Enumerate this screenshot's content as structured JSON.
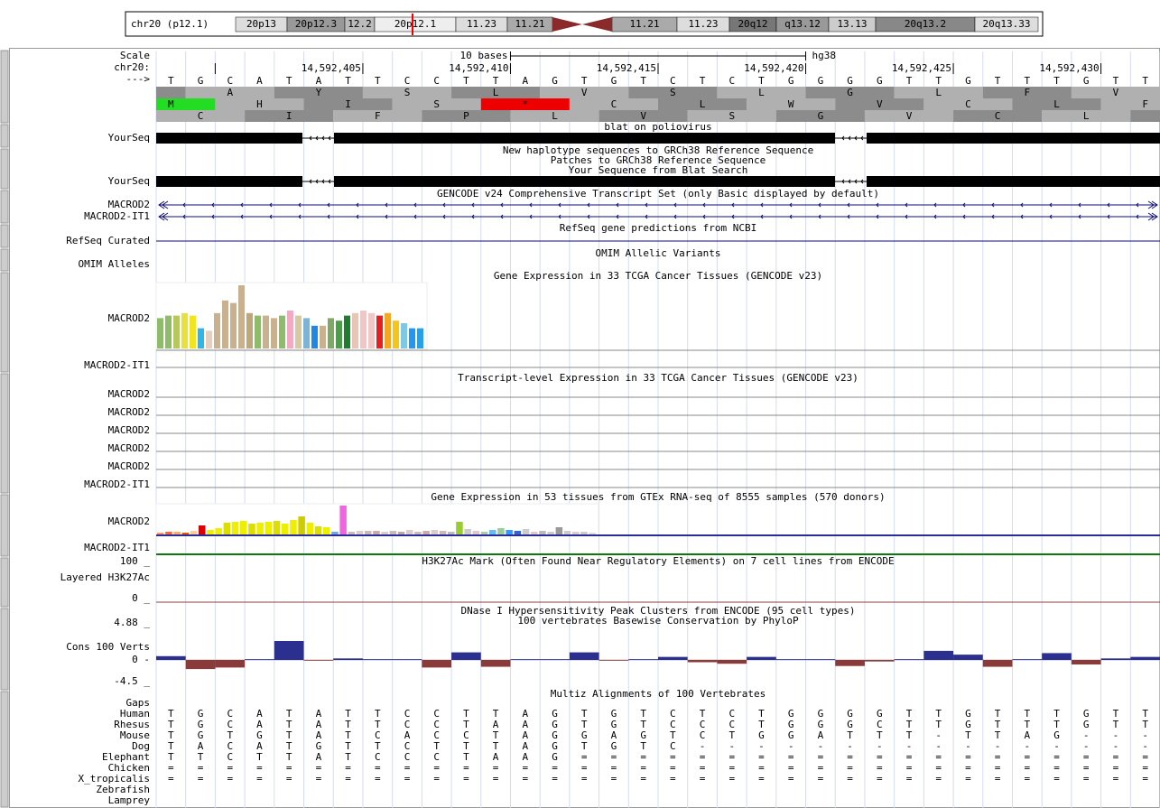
{
  "ideogram": {
    "chrom_label": "chr20 (p12.1)",
    "bands": [
      "20p13",
      "20p12.3",
      "12.2",
      "20p12.1",
      "11.23",
      "11.21",
      "11.21",
      "11.23",
      "20q12",
      "q13.12",
      "13.13",
      "20q13.2",
      "20q13.33"
    ]
  },
  "ruler": {
    "scale_label": "Scale",
    "chrom_label": "chr20:",
    "strand_label": "--->",
    "scale_text": "10 bases",
    "assembly": "hg38",
    "positions": [
      "14,592,405",
      "14,592,410",
      "14,592,415",
      "14,592,420",
      "14,592,425",
      "14,592,430"
    ],
    "bases": "TGCATATTCCTTAGTGTCTCTGGGGTTGTTTGTT"
  },
  "frames": [
    "AYSLVSLGLFV",
    "MHIS*CLWVCLF",
    "CIFPLVSGVCL"
  ],
  "tracks": {
    "blat_title": "blat on poliovirus",
    "blat_label": "YourSeq",
    "haplotype_title": "New haplotype sequences to GRCh38 Reference Sequence",
    "patches_title": "Patches to GRCh38 Reference Sequence",
    "yourseq_title": "Your Sequence from Blat Search",
    "yourseq_label": "YourSeq",
    "gencode_title": "GENCODE v24 Comprehensive Transcript Set (only Basic displayed by default)",
    "gencode_labels": [
      "MACROD2",
      "MACROD2-IT1"
    ],
    "refseq_title": "RefSeq gene predictions from NCBI",
    "refseq_label": "RefSeq Curated",
    "omim_title": "OMIM Allelic Variants",
    "omim_label": "OMIM Alleles",
    "tcga_gene": {
      "title": "Gene Expression in 33 TCGA Cancer Tissues (GENCODE v23)",
      "labels": [
        "MACROD2",
        "MACROD2-IT1"
      ],
      "values": [
        12,
        13,
        13,
        14,
        13,
        8,
        7,
        14,
        19,
        18,
        25,
        14,
        13,
        13,
        12,
        13,
        15,
        13,
        12,
        9,
        9,
        12,
        11,
        13,
        14,
        15,
        14,
        13,
        14,
        11,
        10,
        8,
        8
      ],
      "colors": [
        "#8fbc6a",
        "#8fbc6a",
        "#b5c95a",
        "#e8e03c",
        "#f2e51f",
        "#2fb5e8",
        "#e4cfc0",
        "#c9b08f",
        "#c9b08f",
        "#c9b08f",
        "#c9b08f",
        "#bfa57c",
        "#8fbc6a",
        "#c9b08f",
        "#c9b08f",
        "#8fbc6a",
        "#f4a9c0",
        "#d9c9a3",
        "#7fb3d5",
        "#1e88e5",
        "#c9b08f",
        "#7fa866",
        "#4e9b4e",
        "#1e7d2e",
        "#e8c5b5",
        "#f2c6c6",
        "#f2c6c6",
        "#e52020",
        "#f5a623",
        "#f5c518",
        "#7ec8e3",
        "#2196f3",
        "#29a0e6"
      ]
    },
    "tcga_transcript": {
      "title": "Transcript-level Expression in 33 TCGA Cancer Tissues (GENCODE v23)",
      "labels": [
        "MACROD2",
        "MACROD2",
        "MACROD2",
        "MACROD2",
        "MACROD2",
        "MACROD2-IT1"
      ]
    },
    "gtex": {
      "title": "Gene Expression in 53 tissues from GTEx RNA-seq of 8555 samples (570 donors)",
      "labels": [
        "MACROD2",
        "MACROD2-IT1"
      ],
      "values": [
        2,
        3,
        3,
        2,
        4,
        10,
        5,
        7,
        13,
        14,
        15,
        12,
        13,
        14,
        15,
        12,
        16,
        20,
        13,
        9,
        8,
        3,
        32,
        3,
        4,
        4,
        4,
        3,
        4,
        3,
        5,
        3,
        4,
        5,
        4,
        3,
        14,
        6,
        4,
        3,
        5,
        7,
        5,
        4,
        6,
        3,
        4,
        3,
        8,
        4,
        3,
        3,
        2
      ],
      "colors": [
        "#ff9966",
        "#ff6633",
        "#ffaa66",
        "#ee5500",
        "#ffcc99",
        "#dd0000",
        "#eeee00",
        "#eeee00",
        "#dddd00",
        "#eeee00",
        "#eeee00",
        "#dddd00",
        "#eeee00",
        "#eeee00",
        "#dddd00",
        "#eeee00",
        "#eeee00",
        "#cccc00",
        "#eeee00",
        "#dddd00",
        "#eeee00",
        "#66aaee",
        "#ee66dd",
        "#ccbbbb",
        "#ddcccc",
        "#ccbbbb",
        "#ccaaaa",
        "#ddcccc",
        "#ccbbbb",
        "#bbaaaa",
        "#ddcccc",
        "#ccbbbb",
        "#ccaaaa",
        "#ddcccc",
        "#ccbbbb",
        "#bbbbbb",
        "#99cc33",
        "#cccccc",
        "#ddcccc",
        "#aaccaa",
        "#66bbff",
        "#99cc99",
        "#3399ff",
        "#3366cc",
        "#cccccc",
        "#ddcccc",
        "#bbbbbb",
        "#cccccc",
        "#999999",
        "#cccccc",
        "#ddcccc",
        "#cccccc",
        "#dddddd"
      ]
    },
    "h3k27ac": {
      "title": "H3K27Ac Mark (Often Found Near Regulatory Elements) on 7 cell lines from ENCODE",
      "label": "Layered H3K27Ac",
      "top_label": "100 _",
      "bottom_label": "0 _"
    },
    "dnase": {
      "title": "DNase I Hypersensitivity Peak Clusters from ENCODE (95 cell types)"
    },
    "phylop": {
      "title": "100 vertebrates Basewise Conservation by PhyloP",
      "label": "Cons 100 Verts",
      "top_label": "4.88 _",
      "zero_label": "0 -",
      "bottom_label": "-4.5 _",
      "values": [
        0.5,
        -1.2,
        -1.0,
        0.1,
        2.5,
        -0.1,
        0.2,
        0.1,
        0.1,
        -1.0,
        1.0,
        -0.9,
        0.1,
        0.1,
        1.0,
        -0.1,
        0.1,
        0.4,
        -0.3,
        -0.5,
        0.4,
        0.1,
        0.1,
        -0.8,
        -0.2,
        0.1,
        1.2,
        0.7,
        -0.9,
        0.1,
        0.9,
        -0.6,
        0.2,
        0.4
      ]
    },
    "multiz": {
      "title": "Multiz Alignments of 100 Vertebrates",
      "gaps_label": "Gaps",
      "species": [
        {
          "name": "Human",
          "bases": "TGCATATTCCTTAGTGTCTCTGGGGTTGTTTGTT"
        },
        {
          "name": "Rhesus",
          "bases": "TGCATATTCCTAAGTGTCCCTGGGCTTGTTTGTT"
        },
        {
          "name": "Mouse",
          "bases": "TGTGTATCACCTAGGAGTCTGGATTT-TTAG---"
        },
        {
          "name": "Dog",
          "bases": "TACATGTTCTTTAGTGTC----------------"
        },
        {
          "name": "Elephant",
          "bases": "TTCTTATCCCTAAG===================="
        },
        {
          "name": "Chicken",
          "bases": "=================================="
        },
        {
          "name": "X_tropicalis",
          "bases": "=================================="
        },
        {
          "name": "Zebrafish"
        },
        {
          "name": "Lamprey"
        }
      ]
    }
  }
}
